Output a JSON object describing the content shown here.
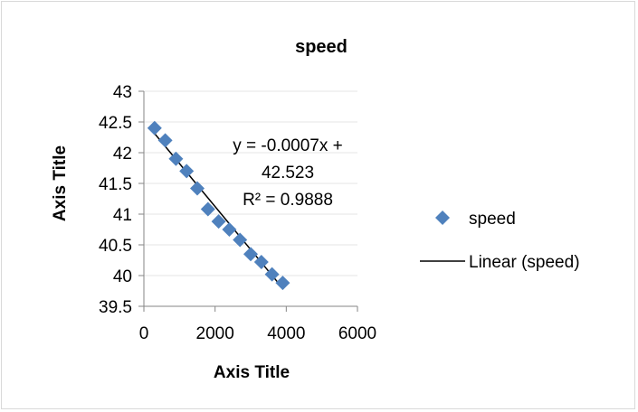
{
  "chart_data": {
    "type": "scatter",
    "title": "speed",
    "xlabel": "Axis Title",
    "ylabel": "Axis Title",
    "xlim": [
      0,
      6000
    ],
    "ylim": [
      39.5,
      43
    ],
    "x_ticks": [
      "0",
      "2000",
      "4000",
      "6000"
    ],
    "y_ticks": [
      "39.5",
      "40",
      "40.5",
      "41",
      "41.5",
      "42",
      "42.5",
      "43"
    ],
    "series": [
      {
        "name": "speed",
        "marker": "diamond",
        "color": "#4f81bd",
        "points": [
          {
            "x": 300,
            "y": 42.4
          },
          {
            "x": 600,
            "y": 42.2
          },
          {
            "x": 900,
            "y": 41.9
          },
          {
            "x": 1200,
            "y": 41.7
          },
          {
            "x": 1500,
            "y": 41.42
          },
          {
            "x": 1800,
            "y": 41.08
          },
          {
            "x": 2100,
            "y": 40.88
          },
          {
            "x": 2400,
            "y": 40.75
          },
          {
            "x": 2700,
            "y": 40.58
          },
          {
            "x": 3000,
            "y": 40.35
          },
          {
            "x": 3300,
            "y": 40.22
          },
          {
            "x": 3600,
            "y": 40.02
          },
          {
            "x": 3900,
            "y": 39.88
          }
        ]
      }
    ],
    "trendline": {
      "name": "Linear (speed)",
      "type": "linear",
      "slope": -0.0007,
      "intercept": 42.523,
      "x_range": [
        300,
        3900
      ],
      "color": "#000000",
      "equation_line1": "y = -0.0007x +",
      "equation_line2": "42.523",
      "r_squared": "R² = 0.9888"
    },
    "legend": {
      "placement": "right",
      "entries": [
        "speed",
        "Linear (speed)"
      ]
    },
    "grid": true
  }
}
